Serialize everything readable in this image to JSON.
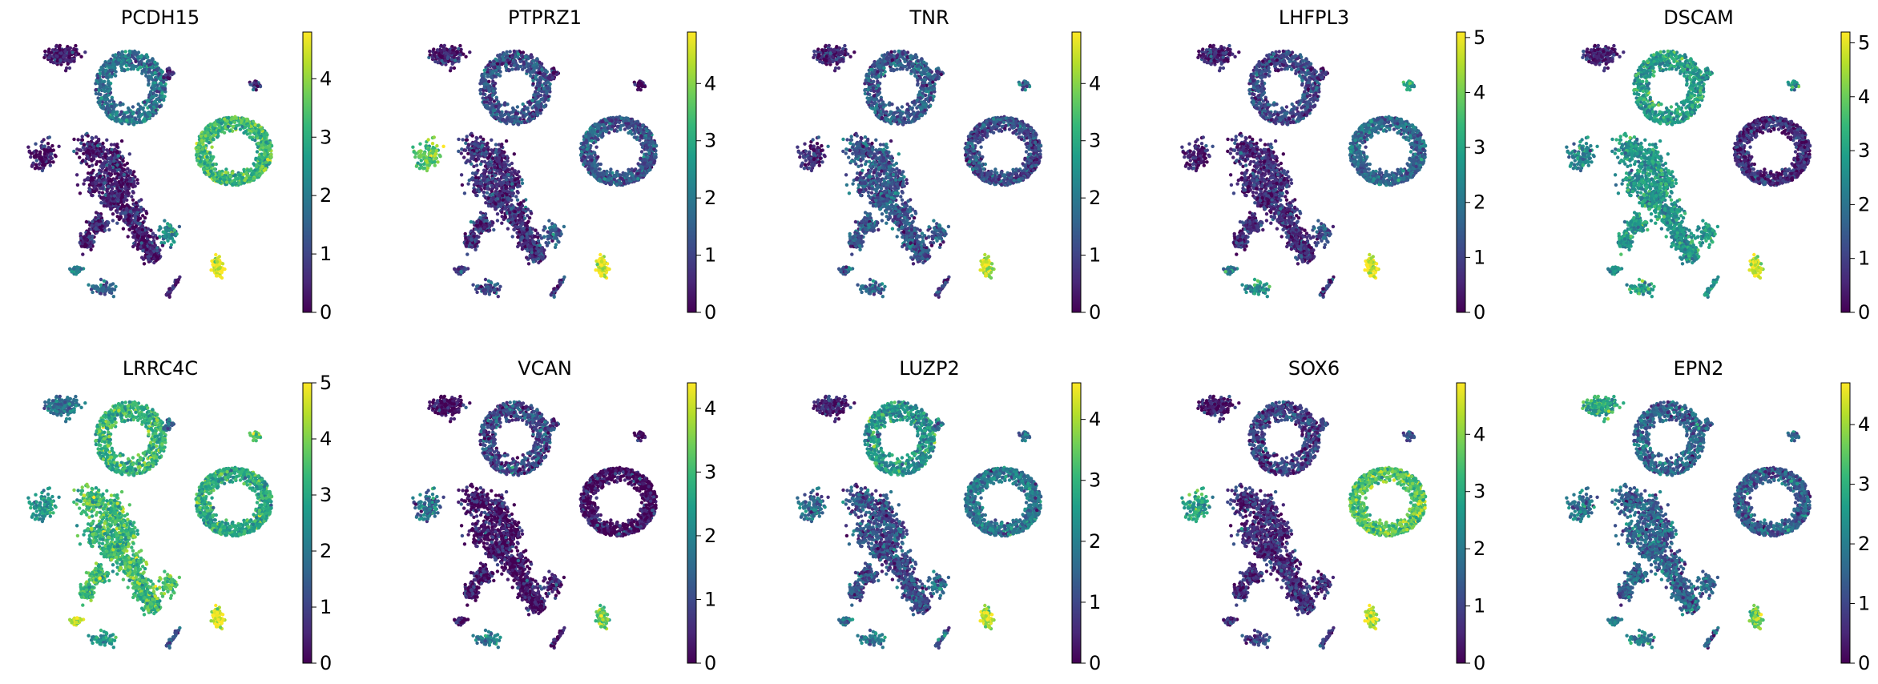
{
  "colors": {
    "viridis": [
      "#440154",
      "#482878",
      "#3e4989",
      "#31688e",
      "#26828e",
      "#1f9e89",
      "#35b779",
      "#6ece58",
      "#b5de2b",
      "#fde725"
    ],
    "background": "#ffffff",
    "tick": "#000000"
  },
  "chart_data": [
    {
      "type": "scatter",
      "title": "PCDH15",
      "colorbar": {
        "vmin": 0,
        "vmax": 4.8,
        "ticks": [
          0,
          1,
          2,
          3,
          4
        ],
        "tick_labels": [
          "0",
          "1",
          "2",
          "3",
          "4"
        ]
      },
      "cluster_levels": {
        "tl": 0.2,
        "mid": 1.8,
        "sm": 0.6,
        "dot": 0.8,
        "left": 0.3,
        "cent": 0.4,
        "ring": 3.2,
        "bot": 4.8,
        "botl1": 2.0,
        "botl2": 1.5,
        "botm": 2.2,
        "botr": 0.5
      }
    },
    {
      "type": "scatter",
      "title": "PTPRZ1",
      "colorbar": {
        "vmin": 0,
        "vmax": 4.9,
        "ticks": [
          0,
          1,
          2,
          3,
          4
        ],
        "tick_labels": [
          "0",
          "1",
          "2",
          "3",
          "4"
        ]
      },
      "cluster_levels": {
        "tl": 0.3,
        "mid": 1.2,
        "sm": 0.4,
        "dot": 0.3,
        "left": 3.6,
        "cent": 0.7,
        "ring": 1.3,
        "bot": 4.8,
        "botl1": 1.0,
        "botl2": 1.0,
        "botm": 1.4,
        "botr": 0.8
      }
    },
    {
      "type": "scatter",
      "title": "TNR",
      "colorbar": {
        "vmin": 0,
        "vmax": 4.9,
        "ticks": [
          0,
          1,
          2,
          3,
          4
        ],
        "tick_labels": [
          "0",
          "1",
          "2",
          "3",
          "4"
        ]
      },
      "cluster_levels": {
        "tl": 0.5,
        "mid": 1.4,
        "sm": 1.2,
        "dot": 1.6,
        "left": 0.6,
        "cent": 1.3,
        "ring": 1.1,
        "bot": 4.5,
        "botl1": 1.6,
        "botl2": 1.5,
        "botm": 1.4,
        "botr": 1.0
      }
    },
    {
      "type": "scatter",
      "title": "LHFPL3",
      "colorbar": {
        "vmin": 0,
        "vmax": 5.1,
        "ticks": [
          0,
          1,
          2,
          3,
          4,
          5
        ],
        "tick_labels": [
          "0",
          "1",
          "2",
          "3",
          "4",
          "5"
        ]
      },
      "cluster_levels": {
        "tl": 0.5,
        "mid": 1.1,
        "sm": 0.8,
        "dot": 2.8,
        "left": 0.5,
        "cent": 0.6,
        "ring": 1.7,
        "bot": 5.0,
        "botl1": 2.2,
        "botl2": 2.5,
        "botm": 1.3,
        "botr": 1.0
      }
    },
    {
      "type": "scatter",
      "title": "DSCAM",
      "colorbar": {
        "vmin": 0,
        "vmax": 5.2,
        "ticks": [
          0,
          1,
          2,
          3,
          4,
          5
        ],
        "tick_labels": [
          "0",
          "1",
          "2",
          "3",
          "4",
          "5"
        ]
      },
      "cluster_levels": {
        "tl": 0.5,
        "mid": 2.9,
        "sm": 2.4,
        "dot": 2.6,
        "left": 2.4,
        "cent": 2.7,
        "ring": 0.6,
        "bot": 5.0,
        "botl1": 2.6,
        "botl2": 2.8,
        "botm": 2.8,
        "botr": 2.6
      }
    },
    {
      "type": "scatter",
      "title": "LRRC4C",
      "colorbar": {
        "vmin": 0,
        "vmax": 5.0,
        "ticks": [
          0,
          1,
          2,
          3,
          4,
          5
        ],
        "tick_labels": [
          "0",
          "1",
          "2",
          "3",
          "4",
          "5"
        ]
      },
      "cluster_levels": {
        "tl": 2.0,
        "mid": 3.2,
        "sm": 1.5,
        "dot": 3.8,
        "left": 2.6,
        "cent": 3.4,
        "ring": 3.0,
        "bot": 4.8,
        "botl1": 4.4,
        "botl2": 2.6,
        "botm": 3.6,
        "botr": 1.4
      }
    },
    {
      "type": "scatter",
      "title": "VCAN",
      "colorbar": {
        "vmin": 0,
        "vmax": 4.4,
        "ticks": [
          0,
          1,
          2,
          3,
          4
        ],
        "tick_labels": [
          "0",
          "1",
          "2",
          "3",
          "4"
        ]
      },
      "cluster_levels": {
        "tl": 0.1,
        "mid": 0.9,
        "sm": 0.7,
        "dot": 0.2,
        "left": 1.6,
        "cent": 0.2,
        "ring": 0.1,
        "bot": 3.4,
        "botl1": 0.3,
        "botl2": 1.8,
        "botm": 0.2,
        "botr": 0.4
      }
    },
    {
      "type": "scatter",
      "title": "LUZP2",
      "colorbar": {
        "vmin": 0,
        "vmax": 4.6,
        "ticks": [
          0,
          1,
          2,
          3,
          4
        ],
        "tick_labels": [
          "0",
          "1",
          "2",
          "3",
          "4"
        ]
      },
      "cluster_levels": {
        "tl": 0.4,
        "mid": 2.4,
        "sm": 1.6,
        "dot": 1.8,
        "left": 1.6,
        "cent": 1.1,
        "ring": 1.8,
        "bot": 4.2,
        "botl1": 1.8,
        "botl2": 1.8,
        "botm": 1.6,
        "botr": 1.2
      }
    },
    {
      "type": "scatter",
      "title": "SOX6",
      "colorbar": {
        "vmin": 0,
        "vmax": 4.9,
        "ticks": [
          0,
          1,
          2,
          3,
          4
        ],
        "tick_labels": [
          "0",
          "1",
          "2",
          "3",
          "4"
        ]
      },
      "cluster_levels": {
        "tl": 0.3,
        "mid": 0.9,
        "sm": 1.2,
        "dot": 1.3,
        "left": 2.9,
        "cent": 0.6,
        "ring": 3.5,
        "bot": 4.4,
        "botl1": 0.8,
        "botl2": 0.9,
        "botm": 0.5,
        "botr": 0.7
      }
    },
    {
      "type": "scatter",
      "title": "EPN2",
      "colorbar": {
        "vmin": 0,
        "vmax": 4.7,
        "ticks": [
          0,
          1,
          2,
          3,
          4
        ],
        "tick_labels": [
          "0",
          "1",
          "2",
          "3",
          "4"
        ]
      },
      "cluster_levels": {
        "tl": 2.8,
        "mid": 1.5,
        "sm": 1.5,
        "dot": 1.6,
        "left": 1.8,
        "cent": 1.5,
        "ring": 1.4,
        "bot": 3.6,
        "botl1": 2.0,
        "botl2": 2.0,
        "botm": 1.5,
        "botr": 1.5
      }
    }
  ]
}
